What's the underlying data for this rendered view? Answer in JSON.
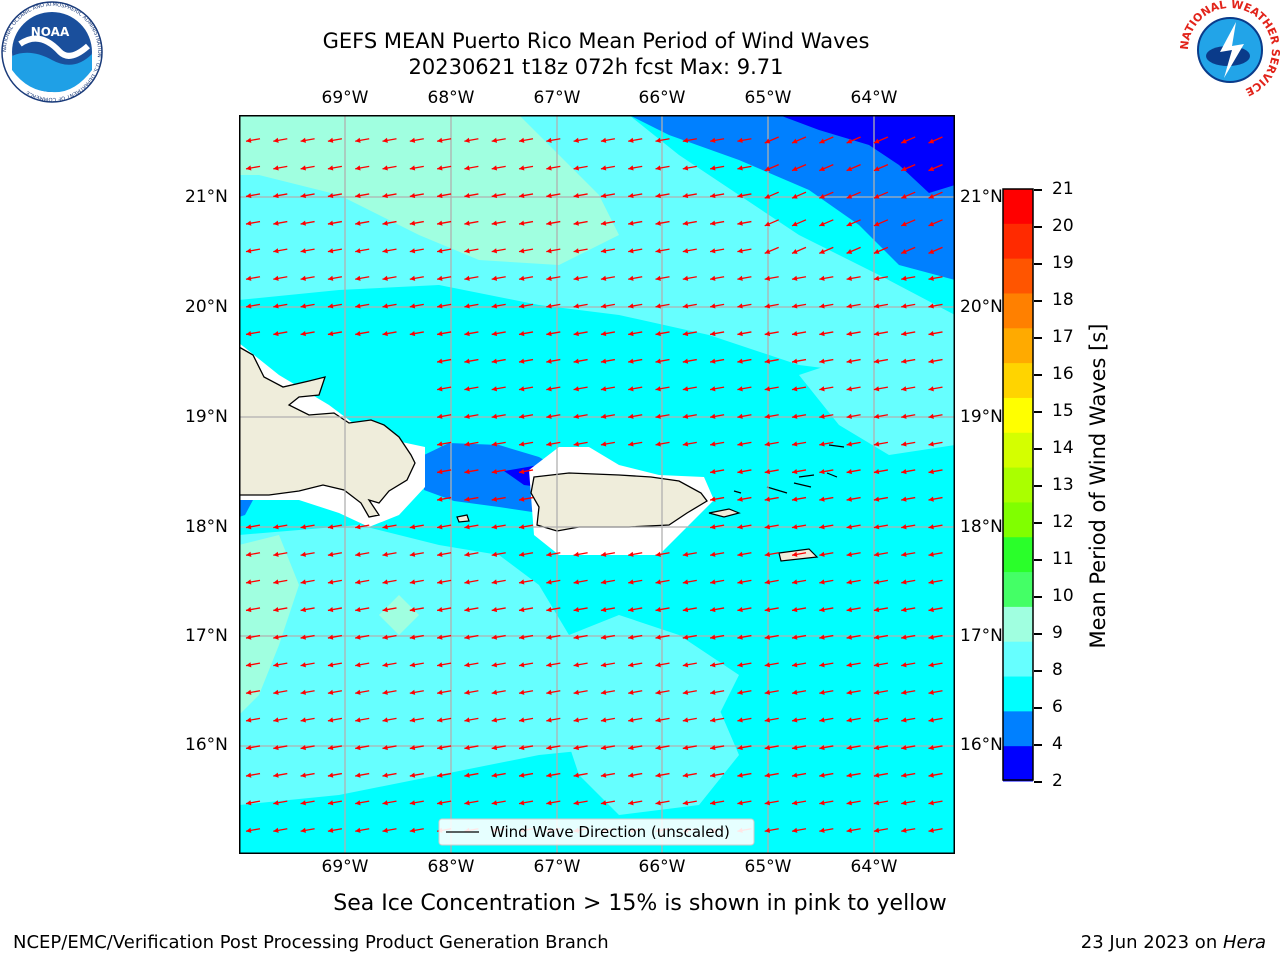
{
  "title": {
    "line1": "GEFS MEAN Puerto Rico Mean Period of Wind Waves",
    "line2": "20230621 t18z 072h fcst   Max: 9.71"
  },
  "map": {
    "lon_labels": [
      "69°W",
      "68°W",
      "67°W",
      "66°W",
      "65°W",
      "64°W"
    ],
    "lat_labels": [
      "21°N",
      "20°N",
      "19°N",
      "18°N",
      "17°N",
      "16°N"
    ],
    "legend_label": "Wind Wave Direction (unscaled)",
    "arrow_color": "#ff0000",
    "land_color": "#efeddb"
  },
  "colorbar": {
    "label": "Mean Period of Wind Waves [s]",
    "ticks": [
      "21",
      "20",
      "19",
      "18",
      "17",
      "16",
      "15",
      "14",
      "13",
      "12",
      "11",
      "10",
      "9",
      "8",
      "6",
      "4",
      "2"
    ],
    "colors": [
      "#ff0000",
      "#ff2a00",
      "#ff5500",
      "#ff8000",
      "#ffaa00",
      "#ffd400",
      "#ffff00",
      "#d4ff00",
      "#aaff00",
      "#80ff00",
      "#2aff2a",
      "#44ff66",
      "#a0ffe0",
      "#66ffff",
      "#00ffff",
      "#0080ff",
      "#0000ff"
    ]
  },
  "sea_ice_note": "Sea Ice Concentration > 15% is shown in pink to yellow",
  "footer": {
    "left": "NCEP/EMC/Verification Post Processing Product Generation Branch",
    "date": "23 Jun 2023 on ",
    "host": "Hera"
  },
  "logos": {
    "noaa": "NOAA",
    "noaa_ring": "NATIONAL OCEANIC AND ATMOSPHERIC ADMINISTRATION · U.S. DEPARTMENT OF COMMERCE",
    "nws_ring": "NATIONAL WEATHER SERVICE"
  }
}
